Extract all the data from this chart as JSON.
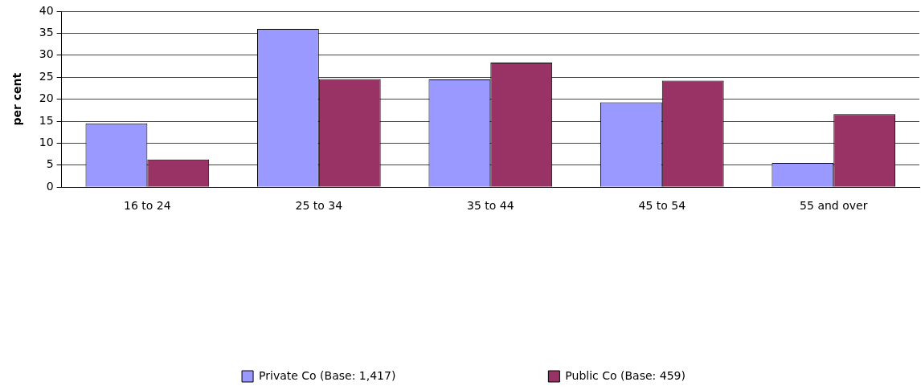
{
  "chart_data": {
    "type": "bar",
    "ylabel": "per cent",
    "categories": [
      "16 to 24",
      "25 to 34",
      "35 to 44",
      "45 to 54",
      "55 and over"
    ],
    "series": [
      {
        "name": "Private Co (Base: 1,417)",
        "color": "#9999ff",
        "values": [
          14.5,
          36.0,
          24.5,
          19.3,
          5.5
        ]
      },
      {
        "name": "Public Co (Base: 459)",
        "color": "#993366",
        "values": [
          6.3,
          24.6,
          28.3,
          24.2,
          16.6
        ]
      }
    ],
    "ylim": [
      0,
      40
    ],
    "yticks": [
      0,
      5,
      10,
      15,
      20,
      25,
      30,
      35,
      40
    ],
    "grid": "y",
    "legend": "bottom"
  }
}
